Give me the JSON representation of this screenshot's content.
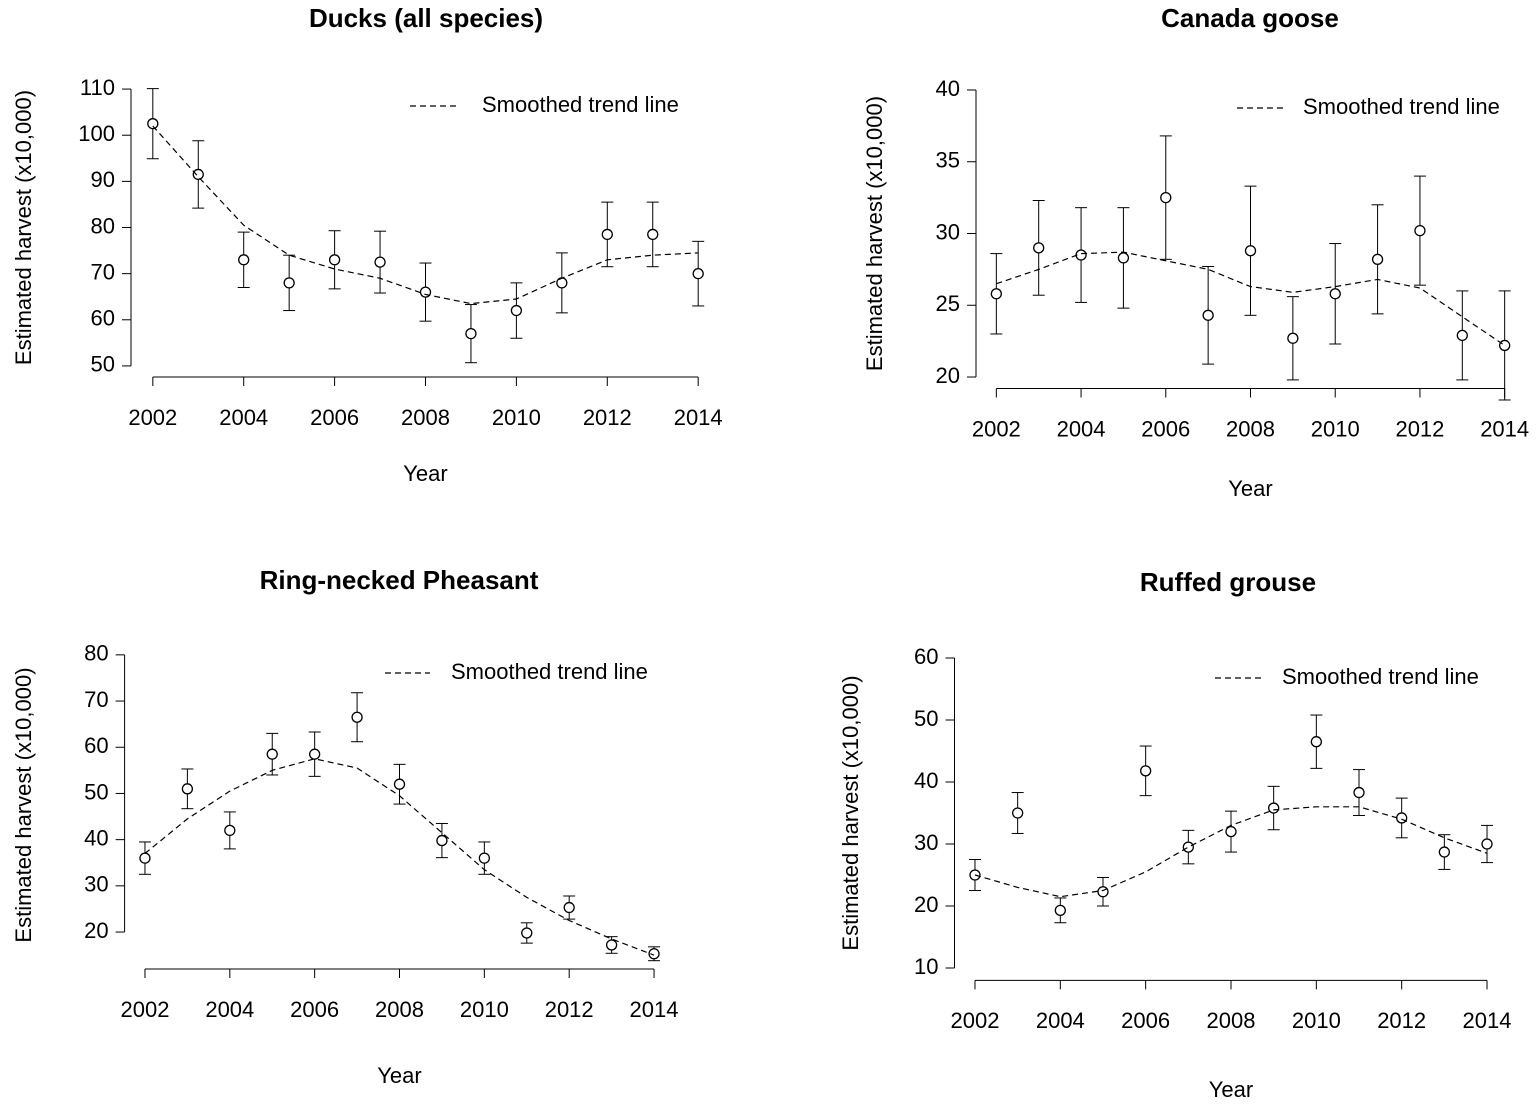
{
  "chart_data": [
    {
      "type": "scatter",
      "title": "Ducks (all species)",
      "x_label": "Year",
      "y_label": "Estimated harvest (x10,000)",
      "x": [
        2002,
        2003,
        2004,
        2005,
        2006,
        2007,
        2008,
        2009,
        2010,
        2011,
        2012,
        2013,
        2014
      ],
      "xlim": [
        2001.52,
        2014.48
      ],
      "xticks": [
        2002,
        2004,
        2006,
        2008,
        2010,
        2012,
        2014
      ],
      "ylim": [
        47.6,
        112.4
      ],
      "yticks": [
        50,
        60,
        70,
        80,
        90,
        100,
        110
      ],
      "legend": "top right",
      "series": [
        {
          "color": "#000000",
          "values": [
            102.5,
            91.5,
            73,
            68,
            73,
            72.5,
            66,
            57,
            62,
            68,
            78.5,
            78.5,
            70
          ],
          "errors": [
            7.6,
            7.3,
            6,
            6,
            6.3,
            6.7,
            6.3,
            6.3,
            6,
            6.5,
            7,
            7,
            7
          ]
        },
        {
          "name": "Smoothed trend line",
          "color": "#000000",
          "line_style": "dashed",
          "values": [
            102,
            91,
            80.5,
            74,
            71,
            69,
            65.5,
            63.5,
            64.5,
            69,
            73,
            74,
            74.5
          ]
        }
      ]
    },
    {
      "type": "scatter",
      "title": "Canada goose",
      "x_label": "Year",
      "y_label": "Estimated harvest (x10,000)",
      "x": [
        2002,
        2003,
        2004,
        2005,
        2006,
        2007,
        2008,
        2009,
        2010,
        2011,
        2012,
        2013,
        2014
      ],
      "xlim": [
        2001.52,
        2014.48
      ],
      "xticks": [
        2002,
        2004,
        2006,
        2008,
        2010,
        2012,
        2014
      ],
      "ylim": [
        19.2,
        40.8
      ],
      "yticks": [
        20,
        25,
        30,
        35,
        40
      ],
      "legend": "top right",
      "series": [
        {
          "color": "#000000",
          "values": [
            25.8,
            29,
            28.5,
            28.3,
            32.5,
            24.3,
            28.8,
            22.7,
            25.8,
            28.2,
            30.2,
            22.9,
            22.2
          ],
          "errors": [
            2.8,
            3.3,
            3.3,
            3.5,
            4.3,
            3.4,
            4.5,
            2.9,
            3.5,
            3.8,
            3.8,
            3.1,
            3.8
          ]
        },
        {
          "name": "Smoothed trend line",
          "color": "#000000",
          "line_style": "dashed",
          "values": [
            26.5,
            27.5,
            28.6,
            28.7,
            28.1,
            27.5,
            26.3,
            25.9,
            26.3,
            26.8,
            26.2,
            24.2,
            22.2
          ]
        }
      ]
    },
    {
      "type": "scatter",
      "title": "Ring-necked Pheasant",
      "x_label": "Year",
      "y_label": "Estimated harvest (x10,000)",
      "x": [
        2002,
        2003,
        2004,
        2005,
        2006,
        2007,
        2008,
        2009,
        2010,
        2011,
        2012,
        2013,
        2014
      ],
      "xlim": [
        2001.52,
        2014.48
      ],
      "xticks": [
        2002,
        2004,
        2006,
        2008,
        2010,
        2012,
        2014
      ],
      "ylim": [
        12,
        83
      ],
      "yticks": [
        20,
        30,
        40,
        50,
        60,
        70,
        80
      ],
      "legend": "top right",
      "series": [
        {
          "color": "#000000",
          "values": [
            36,
            51,
            42,
            58.5,
            58.5,
            66.5,
            52,
            39.8,
            36,
            19.8,
            25.3,
            17.2,
            15.3
          ],
          "errors": [
            3.5,
            4.3,
            4,
            4.5,
            4.8,
            5.3,
            4.3,
            3.7,
            3.5,
            2.2,
            2.5,
            1.8,
            1.5
          ]
        },
        {
          "name": "Smoothed trend line",
          "color": "#000000",
          "line_style": "dashed",
          "values": [
            37,
            44.5,
            50.5,
            55,
            57.5,
            55.5,
            49.5,
            41.5,
            33.5,
            27.5,
            22.5,
            18.5,
            15
          ]
        }
      ]
    },
    {
      "type": "scatter",
      "title": "Ruffed grouse",
      "x_label": "Year",
      "y_label": "Estimated harvest (x10,000)",
      "x": [
        2002,
        2003,
        2004,
        2005,
        2006,
        2007,
        2008,
        2009,
        2010,
        2011,
        2012,
        2013,
        2014
      ],
      "xlim": [
        2001.52,
        2014.48
      ],
      "xticks": [
        2002,
        2004,
        2006,
        2008,
        2010,
        2012,
        2014
      ],
      "ylim": [
        8,
        62
      ],
      "yticks": [
        10,
        20,
        30,
        40,
        50,
        60
      ],
      "legend": "top right",
      "series": [
        {
          "color": "#000000",
          "values": [
            25,
            35,
            19.3,
            22.3,
            41.8,
            29.5,
            32,
            35.8,
            46.5,
            38.3,
            34.2,
            28.7,
            30
          ],
          "errors": [
            2.5,
            3.3,
            2,
            2.3,
            4,
            2.7,
            3.3,
            3.5,
            4.3,
            3.7,
            3.2,
            2.8,
            3
          ]
        },
        {
          "name": "Smoothed trend line",
          "color": "#000000",
          "line_style": "dashed",
          "values": [
            25,
            23,
            21.5,
            22.5,
            25.5,
            29.5,
            33,
            35.5,
            36,
            36,
            34,
            31,
            28.5
          ]
        }
      ]
    }
  ]
}
